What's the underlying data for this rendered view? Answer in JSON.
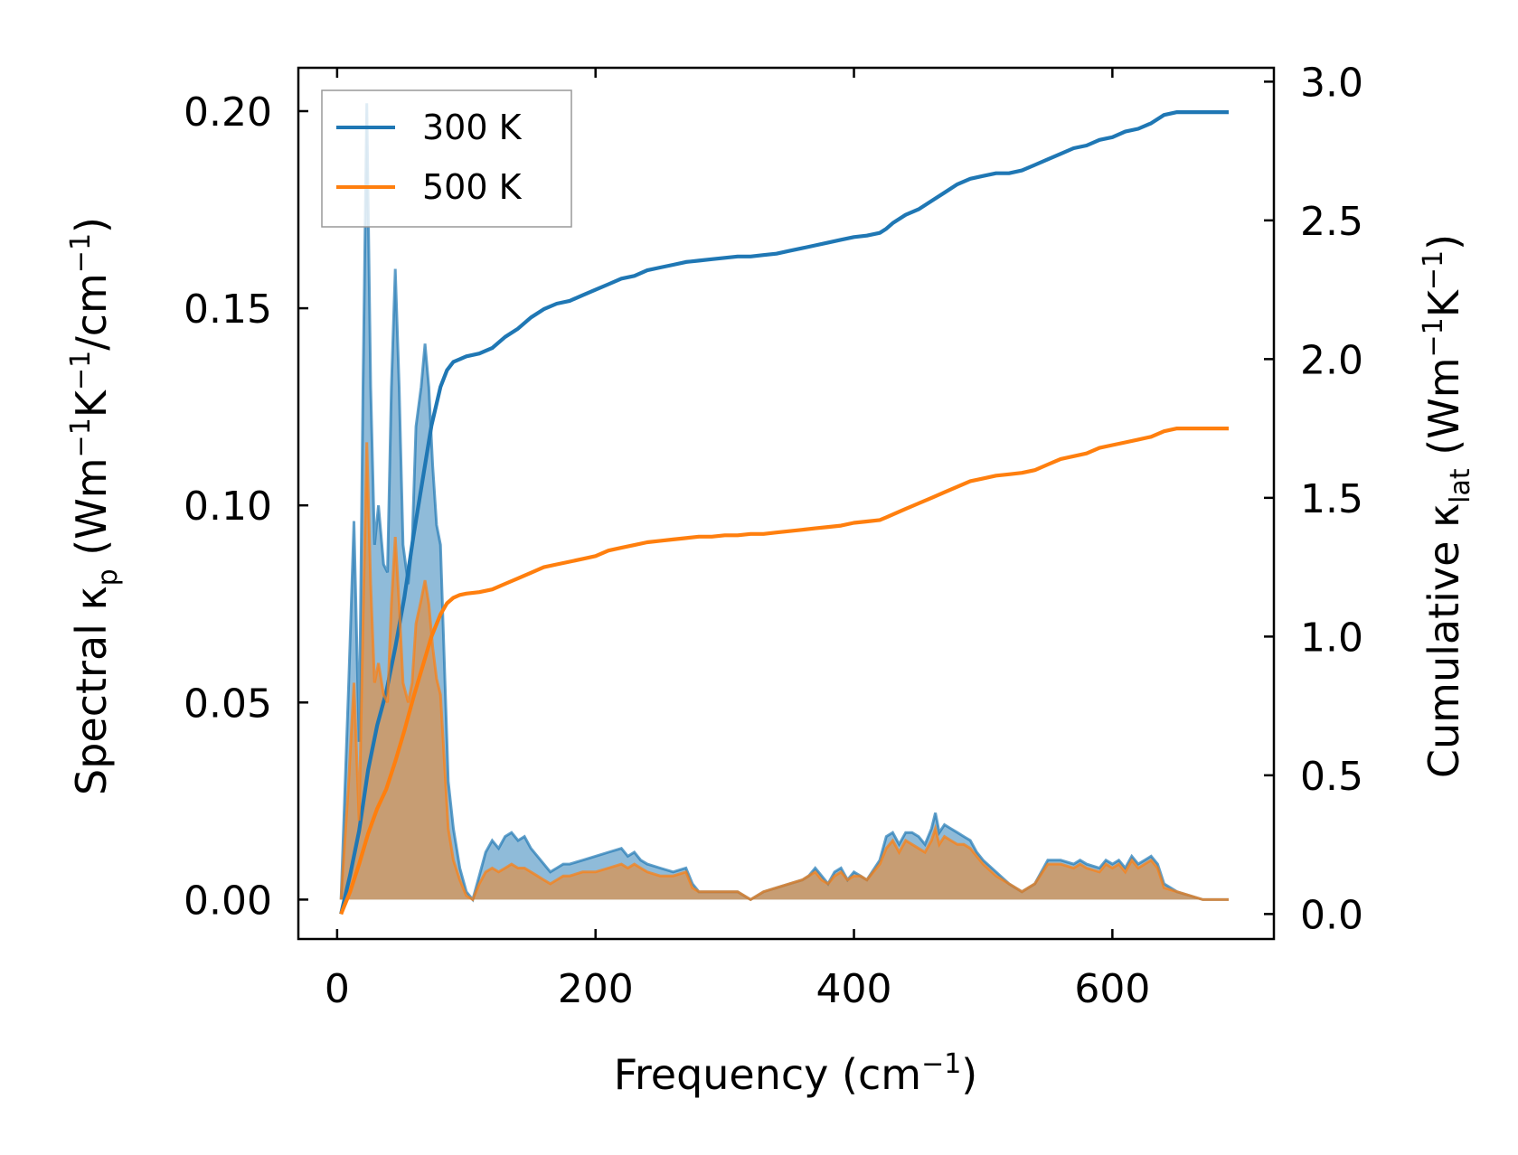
{
  "chart_data": {
    "type": "line",
    "title": "",
    "xlabel": "Frequency (cm",
    "xlabel_sup": "−1",
    "xlabel_end": ")",
    "x_ticks": [
      0,
      200,
      400,
      600
    ],
    "x_tick_labels": [
      "0",
      "200",
      "400",
      "600"
    ],
    "xlim": [
      -30,
      725
    ],
    "y_left": {
      "label_parts": [
        "Spectral κ",
        "p",
        " (Wm",
        "−1",
        "K",
        "−1",
        "/cm",
        "−1",
        ")"
      ],
      "ylim": [
        -0.01,
        0.211
      ],
      "ticks": [
        0.0,
        0.05,
        0.1,
        0.15,
        0.2
      ],
      "tick_labels": [
        "0.00",
        "0.05",
        "0.10",
        "0.15",
        "0.20"
      ]
    },
    "y_right": {
      "label_parts": [
        "Cumulative κ",
        "lat",
        " (Wm",
        "−1",
        "K",
        "−1",
        ")"
      ],
      "ylim": [
        -0.09,
        3.05
      ],
      "ticks": [
        0.0,
        0.5,
        1.0,
        1.5,
        2.0,
        2.5,
        3.0
      ],
      "tick_labels": [
        "0.0",
        "0.5",
        "1.0",
        "1.5",
        "2.0",
        "2.5",
        "3.0"
      ]
    },
    "legend": {
      "placement": "upper-left",
      "entries": [
        "300 K",
        "500 K"
      ]
    },
    "series": [
      {
        "name": "300 K",
        "color": "#1f77b4",
        "fill_color": "#1f77b4",
        "spectral": {
          "x": [
            3,
            9,
            13,
            17,
            20,
            23,
            26,
            29,
            32,
            36,
            39,
            42,
            45,
            48,
            51,
            55,
            58,
            61,
            65,
            68,
            71,
            74,
            77,
            80,
            83,
            86,
            90,
            95,
            100,
            105,
            110,
            115,
            120,
            125,
            130,
            135,
            140,
            145,
            150,
            155,
            160,
            165,
            170,
            175,
            180,
            190,
            200,
            210,
            220,
            225,
            230,
            235,
            240,
            250,
            260,
            270,
            275,
            280,
            290,
            300,
            310,
            320,
            330,
            340,
            350,
            360,
            365,
            370,
            375,
            380,
            385,
            390,
            395,
            400,
            405,
            410,
            420,
            425,
            430,
            435,
            440,
            445,
            450,
            455,
            460,
            463,
            466,
            470,
            475,
            480,
            485,
            490,
            495,
            500,
            510,
            520,
            530,
            540,
            550,
            560,
            570,
            575,
            580,
            590,
            595,
            600,
            605,
            610,
            615,
            620,
            625,
            630,
            635,
            640,
            650,
            660,
            670,
            680,
            690
          ],
          "y": [
            0.0,
            0.055,
            0.096,
            0.04,
            0.13,
            0.202,
            0.13,
            0.09,
            0.1,
            0.085,
            0.083,
            0.13,
            0.16,
            0.13,
            0.09,
            0.08,
            0.09,
            0.12,
            0.13,
            0.141,
            0.13,
            0.11,
            0.095,
            0.09,
            0.06,
            0.03,
            0.018,
            0.008,
            0.002,
            0.0,
            0.006,
            0.012,
            0.015,
            0.013,
            0.016,
            0.017,
            0.015,
            0.016,
            0.013,
            0.011,
            0.009,
            0.007,
            0.008,
            0.009,
            0.009,
            0.01,
            0.011,
            0.012,
            0.013,
            0.011,
            0.012,
            0.01,
            0.009,
            0.008,
            0.007,
            0.008,
            0.004,
            0.002,
            0.002,
            0.002,
            0.002,
            0.0,
            0.002,
            0.003,
            0.004,
            0.005,
            0.006,
            0.008,
            0.006,
            0.004,
            0.007,
            0.008,
            0.005,
            0.007,
            0.006,
            0.005,
            0.01,
            0.016,
            0.017,
            0.014,
            0.017,
            0.017,
            0.016,
            0.014,
            0.018,
            0.022,
            0.017,
            0.019,
            0.018,
            0.017,
            0.016,
            0.015,
            0.012,
            0.01,
            0.007,
            0.004,
            0.002,
            0.004,
            0.01,
            0.01,
            0.009,
            0.01,
            0.009,
            0.008,
            0.01,
            0.009,
            0.01,
            0.008,
            0.011,
            0.009,
            0.01,
            0.011,
            0.009,
            0.004,
            0.002,
            0.001,
            0.0,
            0.0,
            0.0
          ]
        },
        "cumulative": {
          "x": [
            3,
            10,
            17,
            24,
            31,
            38,
            45,
            52,
            59,
            66,
            73,
            80,
            85,
            90,
            95,
            100,
            110,
            120,
            130,
            140,
            150,
            160,
            170,
            180,
            190,
            200,
            210,
            220,
            230,
            240,
            250,
            260,
            270,
            280,
            290,
            300,
            310,
            320,
            330,
            340,
            350,
            360,
            370,
            380,
            390,
            400,
            410,
            420,
            425,
            430,
            440,
            450,
            460,
            470,
            480,
            490,
            500,
            510,
            520,
            530,
            540,
            550,
            560,
            570,
            580,
            590,
            600,
            610,
            620,
            630,
            640,
            650,
            660,
            670,
            680,
            690
          ],
          "y": [
            0.0,
            0.14,
            0.3,
            0.52,
            0.68,
            0.8,
            0.96,
            1.14,
            1.36,
            1.56,
            1.76,
            1.9,
            1.96,
            1.99,
            2.0,
            2.01,
            2.02,
            2.04,
            2.08,
            2.11,
            2.15,
            2.18,
            2.2,
            2.21,
            2.23,
            2.25,
            2.27,
            2.29,
            2.3,
            2.32,
            2.33,
            2.34,
            2.35,
            2.355,
            2.36,
            2.365,
            2.37,
            2.37,
            2.375,
            2.38,
            2.39,
            2.4,
            2.41,
            2.42,
            2.43,
            2.44,
            2.445,
            2.455,
            2.47,
            2.49,
            2.52,
            2.54,
            2.57,
            2.6,
            2.63,
            2.65,
            2.66,
            2.67,
            2.67,
            2.68,
            2.7,
            2.72,
            2.74,
            2.76,
            2.77,
            2.79,
            2.8,
            2.82,
            2.83,
            2.85,
            2.88,
            2.89,
            2.89,
            2.89,
            2.89,
            2.89
          ]
        }
      },
      {
        "name": "500 K",
        "color": "#ff7f0e",
        "fill_color": "#ff7f0e",
        "spectral": {
          "x": [
            3,
            9,
            13,
            17,
            20,
            23,
            26,
            29,
            32,
            36,
            39,
            42,
            45,
            48,
            51,
            55,
            58,
            61,
            65,
            68,
            71,
            74,
            77,
            80,
            83,
            86,
            90,
            95,
            100,
            105,
            110,
            115,
            120,
            125,
            130,
            135,
            140,
            145,
            150,
            155,
            160,
            165,
            170,
            175,
            180,
            190,
            200,
            210,
            220,
            225,
            230,
            235,
            240,
            250,
            260,
            270,
            275,
            280,
            290,
            300,
            310,
            320,
            330,
            340,
            350,
            360,
            365,
            370,
            375,
            380,
            385,
            390,
            395,
            400,
            405,
            410,
            420,
            425,
            430,
            435,
            440,
            445,
            450,
            455,
            460,
            463,
            466,
            470,
            475,
            480,
            485,
            490,
            495,
            500,
            510,
            520,
            530,
            540,
            550,
            560,
            570,
            575,
            580,
            590,
            595,
            600,
            605,
            610,
            615,
            620,
            625,
            630,
            635,
            640,
            650,
            660,
            670,
            680,
            690
          ],
          "y": [
            0.0,
            0.03,
            0.055,
            0.02,
            0.07,
            0.116,
            0.08,
            0.055,
            0.06,
            0.052,
            0.05,
            0.075,
            0.092,
            0.075,
            0.055,
            0.05,
            0.055,
            0.07,
            0.076,
            0.081,
            0.075,
            0.064,
            0.056,
            0.052,
            0.035,
            0.018,
            0.01,
            0.005,
            0.001,
            0.0,
            0.004,
            0.007,
            0.008,
            0.007,
            0.008,
            0.009,
            0.008,
            0.008,
            0.007,
            0.006,
            0.005,
            0.004,
            0.005,
            0.006,
            0.006,
            0.007,
            0.007,
            0.008,
            0.009,
            0.008,
            0.009,
            0.008,
            0.007,
            0.006,
            0.006,
            0.007,
            0.003,
            0.002,
            0.002,
            0.002,
            0.002,
            0.0,
            0.002,
            0.003,
            0.004,
            0.005,
            0.006,
            0.007,
            0.005,
            0.004,
            0.006,
            0.007,
            0.005,
            0.006,
            0.006,
            0.005,
            0.009,
            0.013,
            0.015,
            0.012,
            0.015,
            0.014,
            0.013,
            0.012,
            0.015,
            0.018,
            0.014,
            0.016,
            0.015,
            0.014,
            0.014,
            0.013,
            0.011,
            0.009,
            0.006,
            0.004,
            0.002,
            0.004,
            0.009,
            0.009,
            0.008,
            0.009,
            0.008,
            0.007,
            0.009,
            0.008,
            0.009,
            0.007,
            0.01,
            0.008,
            0.009,
            0.01,
            0.008,
            0.003,
            0.002,
            0.001,
            0.0,
            0.0,
            0.0
          ]
        },
        "cumulative": {
          "x": [
            3,
            10,
            17,
            24,
            31,
            38,
            45,
            52,
            59,
            66,
            73,
            80,
            85,
            90,
            95,
            100,
            110,
            120,
            130,
            140,
            150,
            160,
            170,
            180,
            190,
            200,
            210,
            220,
            230,
            240,
            250,
            260,
            270,
            280,
            290,
            300,
            310,
            320,
            330,
            340,
            350,
            360,
            370,
            380,
            390,
            400,
            410,
            420,
            425,
            430,
            440,
            450,
            460,
            470,
            480,
            490,
            500,
            510,
            520,
            530,
            540,
            550,
            560,
            570,
            580,
            590,
            600,
            610,
            620,
            630,
            640,
            650,
            660,
            670,
            680,
            690
          ],
          "y": [
            0.0,
            0.08,
            0.18,
            0.29,
            0.38,
            0.45,
            0.55,
            0.66,
            0.78,
            0.89,
            1.0,
            1.08,
            1.12,
            1.14,
            1.15,
            1.155,
            1.16,
            1.17,
            1.19,
            1.21,
            1.23,
            1.25,
            1.26,
            1.27,
            1.28,
            1.29,
            1.31,
            1.32,
            1.33,
            1.34,
            1.345,
            1.35,
            1.355,
            1.36,
            1.36,
            1.365,
            1.365,
            1.37,
            1.37,
            1.375,
            1.38,
            1.385,
            1.39,
            1.395,
            1.4,
            1.41,
            1.415,
            1.42,
            1.43,
            1.44,
            1.46,
            1.48,
            1.5,
            1.52,
            1.54,
            1.56,
            1.57,
            1.58,
            1.585,
            1.59,
            1.6,
            1.62,
            1.64,
            1.65,
            1.66,
            1.68,
            1.69,
            1.7,
            1.71,
            1.72,
            1.74,
            1.75,
            1.75,
            1.75,
            1.75,
            1.75
          ]
        }
      }
    ]
  }
}
